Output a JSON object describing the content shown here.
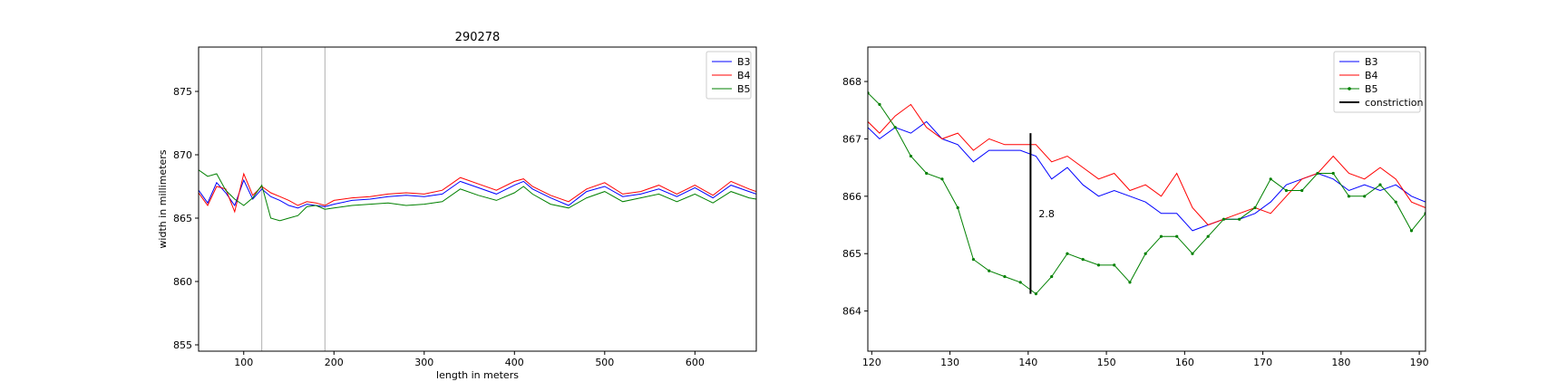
{
  "chart_data": [
    {
      "type": "line",
      "title": "290278",
      "xlabel": "length in meters",
      "ylabel": "width in millimeters",
      "xlim": [
        50,
        668
      ],
      "ylim": [
        854.5,
        878.5
      ],
      "xticks": [
        100,
        200,
        300,
        400,
        500,
        600
      ],
      "yticks": [
        855,
        860,
        865,
        870,
        875
      ],
      "grid": false,
      "legend_position": "top-right",
      "vlines": [
        120,
        190
      ],
      "series": [
        {
          "name": "B3",
          "color": "#0000ff",
          "x": [
            50,
            60,
            70,
            80,
            90,
            100,
            110,
            120,
            130,
            140,
            150,
            160,
            170,
            180,
            190,
            200,
            220,
            240,
            260,
            280,
            300,
            320,
            340,
            360,
            380,
            400,
            410,
            420,
            440,
            460,
            480,
            500,
            520,
            540,
            560,
            580,
            600,
            620,
            640,
            660,
            668
          ],
          "y": [
            867.2,
            866.2,
            867.8,
            867.0,
            866.0,
            868.0,
            866.5,
            867.3,
            866.7,
            866.4,
            866.0,
            865.8,
            866.1,
            866.0,
            865.9,
            866.1,
            866.4,
            866.5,
            866.7,
            866.8,
            866.7,
            866.9,
            867.9,
            867.4,
            866.9,
            867.6,
            867.9,
            867.3,
            866.6,
            866.0,
            867.1,
            867.5,
            866.7,
            866.9,
            867.3,
            866.7,
            867.4,
            866.6,
            867.6,
            867.1,
            866.9
          ]
        },
        {
          "name": "B4",
          "color": "#ff0000",
          "x": [
            50,
            60,
            70,
            80,
            90,
            100,
            110,
            120,
            130,
            140,
            150,
            160,
            170,
            180,
            190,
            200,
            220,
            240,
            260,
            280,
            300,
            320,
            340,
            360,
            380,
            400,
            410,
            420,
            440,
            460,
            480,
            500,
            520,
            540,
            560,
            580,
            600,
            620,
            640,
            660,
            668
          ],
          "y": [
            867.0,
            866.0,
            867.5,
            867.3,
            865.5,
            868.5,
            866.8,
            867.5,
            867.0,
            866.7,
            866.4,
            866.0,
            866.3,
            866.2,
            866.0,
            866.4,
            866.6,
            866.7,
            866.9,
            867.0,
            866.9,
            867.2,
            868.2,
            867.7,
            867.2,
            867.9,
            868.1,
            867.5,
            866.8,
            866.3,
            867.3,
            867.8,
            866.9,
            867.1,
            867.6,
            866.9,
            867.6,
            866.8,
            867.9,
            867.3,
            867.1
          ]
        },
        {
          "name": "B5",
          "color": "#008000",
          "x": [
            50,
            60,
            70,
            80,
            90,
            100,
            110,
            120,
            130,
            140,
            150,
            160,
            170,
            180,
            190,
            200,
            220,
            240,
            260,
            280,
            300,
            320,
            340,
            360,
            380,
            400,
            410,
            420,
            440,
            460,
            480,
            500,
            520,
            540,
            560,
            580,
            600,
            620,
            640,
            660,
            668
          ],
          "y": [
            868.8,
            868.3,
            868.5,
            867.2,
            866.5,
            866.0,
            866.6,
            867.6,
            865.0,
            864.8,
            865.0,
            865.2,
            865.9,
            866.0,
            865.7,
            865.8,
            866.0,
            866.1,
            866.2,
            866.0,
            866.1,
            866.3,
            867.3,
            866.8,
            866.4,
            867.0,
            867.5,
            866.9,
            866.1,
            865.8,
            866.6,
            867.1,
            866.3,
            866.6,
            866.9,
            866.3,
            866.9,
            866.2,
            867.1,
            866.6,
            866.5
          ]
        }
      ]
    },
    {
      "type": "line",
      "xlim": [
        119.5,
        190.8
      ],
      "ylim": [
        863.3,
        868.6
      ],
      "xticks": [
        120,
        130,
        140,
        150,
        160,
        170,
        180,
        190
      ],
      "yticks": [
        864,
        865,
        866,
        867,
        868
      ],
      "grid": false,
      "legend_position": "top-right",
      "constriction": {
        "x": 140.3,
        "y0": 864.3,
        "y1": 867.1,
        "label": "2.8"
      },
      "series": [
        {
          "name": "B3",
          "color": "#0000ff",
          "x": [
            119.5,
            121,
            123,
            125,
            127,
            129,
            131,
            133,
            135,
            137,
            139,
            141,
            143,
            145,
            147,
            149,
            151,
            153,
            155,
            157,
            159,
            161,
            163,
            165,
            167,
            169,
            171,
            173,
            175,
            177,
            179,
            181,
            183,
            185,
            187,
            189,
            190.8
          ],
          "y": [
            867.2,
            867.0,
            867.2,
            867.1,
            867.3,
            867.0,
            866.9,
            866.6,
            866.8,
            866.8,
            866.8,
            866.7,
            866.3,
            866.5,
            866.2,
            866.0,
            866.1,
            866.0,
            865.9,
            865.7,
            865.7,
            865.4,
            865.5,
            865.6,
            865.6,
            865.7,
            865.9,
            866.2,
            866.3,
            866.4,
            866.3,
            866.1,
            866.2,
            866.1,
            866.2,
            866.0,
            865.9
          ]
        },
        {
          "name": "B4",
          "color": "#ff0000",
          "x": [
            119.5,
            121,
            123,
            125,
            127,
            129,
            131,
            133,
            135,
            137,
            139,
            141,
            143,
            145,
            147,
            149,
            151,
            153,
            155,
            157,
            159,
            161,
            163,
            165,
            167,
            169,
            171,
            173,
            175,
            177,
            179,
            181,
            183,
            185,
            187,
            189,
            190.8
          ],
          "y": [
            867.3,
            867.1,
            867.4,
            867.6,
            867.2,
            867.0,
            867.1,
            866.8,
            867.0,
            866.9,
            866.9,
            866.9,
            866.6,
            866.7,
            866.5,
            866.3,
            866.4,
            866.1,
            866.2,
            866.0,
            866.4,
            865.8,
            865.5,
            865.6,
            865.7,
            865.8,
            865.7,
            866.0,
            866.3,
            866.4,
            866.7,
            866.4,
            866.3,
            866.5,
            866.3,
            865.9,
            865.8
          ]
        },
        {
          "name": "B5",
          "color": "#008000",
          "x": [
            119.5,
            121,
            123,
            125,
            127,
            129,
            131,
            133,
            135,
            137,
            139,
            141,
            143,
            145,
            147,
            149,
            151,
            153,
            155,
            157,
            159,
            161,
            163,
            165,
            167,
            169,
            171,
            173,
            175,
            177,
            179,
            181,
            183,
            185,
            187,
            189,
            190.8
          ],
          "y": [
            867.8,
            867.6,
            867.2,
            866.7,
            866.4,
            866.3,
            865.8,
            864.9,
            864.7,
            864.6,
            864.5,
            864.3,
            864.6,
            865.0,
            864.9,
            864.8,
            864.8,
            864.5,
            865.0,
            865.3,
            865.3,
            865.0,
            865.3,
            865.6,
            865.6,
            865.8,
            866.3,
            866.1,
            866.1,
            866.4,
            866.4,
            866.0,
            866.0,
            866.2,
            865.9,
            865.4,
            865.7
          ]
        }
      ]
    }
  ]
}
